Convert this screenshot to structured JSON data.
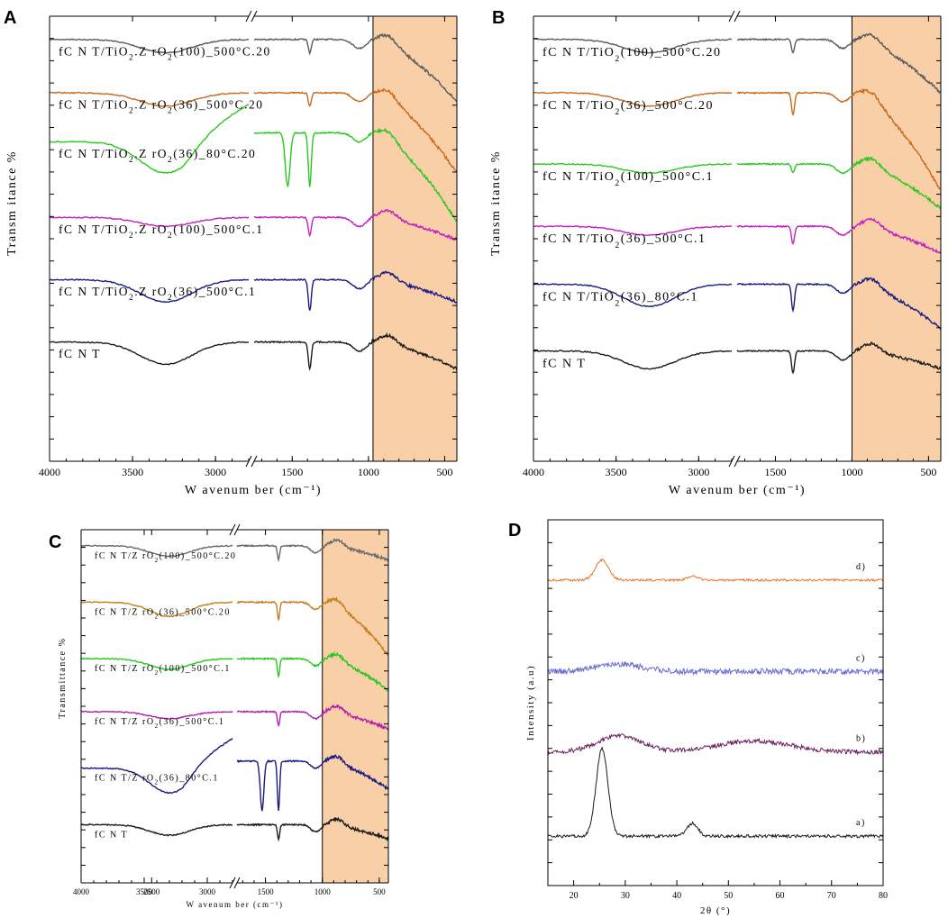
{
  "figure": {
    "description_note": "",
    "chart_data": [
      {
        "panel": "A",
        "type": "line",
        "subtype": "FTIR stacked spectra (broken x axis)",
        "xlabel": "W avenum ber (cm⁻¹)",
        "ylabel": "Transm itance %",
        "x_segments": [
          [
            4000,
            2800
          ],
          [
            1750,
            420
          ]
        ],
        "x_ticks": [
          4000,
          3500,
          3000,
          1500,
          1000,
          500
        ],
        "highlight_x": [
          970,
          420
        ],
        "highlight_color": "#f9cfa8",
        "series": [
          {
            "name": "fC N T/TiO₂.Z rO₂(100)_500°C.20",
            "color": "#5a5a5a",
            "offset": 0.04,
            "kind": "smooth",
            "dip": 0.03,
            "peak1380": 0.03,
            "tail": 0.14
          },
          {
            "name": "fC N T/TiO₂.Z rO₂(36)_500°C.20",
            "color": "#c8691c",
            "offset": 0.16,
            "kind": "smooth",
            "dip": 0.03,
            "peak1380": 0.03,
            "tail": 0.18
          },
          {
            "name": "fC N T/TiO₂.Z rO₂(36)_80°C.20",
            "color": "#28c81e",
            "offset": 0.27,
            "kind": "bend",
            "dip": 0.07,
            "peak1380": 0.12,
            "tail": 0.2
          },
          {
            "name": "fC N T/TiO₂.Z rO₂(100)_500°C.1",
            "color": "#c020c0",
            "offset": 0.44,
            "kind": "smooth",
            "dip": 0.02,
            "peak1380": 0.04,
            "tail": 0.05
          },
          {
            "name": "fC N T/TiO₂.Z rO₂(36)_500°C.1",
            "color": "#1a1a80",
            "offset": 0.58,
            "kind": "smooth",
            "dip": 0.05,
            "peak1380": 0.07,
            "tail": 0.05
          },
          {
            "name": "fC N T",
            "color": "#1a1a1a",
            "offset": 0.72,
            "kind": "smooth",
            "dip": 0.05,
            "peak1380": 0.06,
            "tail": 0.06
          }
        ]
      },
      {
        "panel": "B",
        "type": "line",
        "subtype": "FTIR stacked spectra (broken x axis)",
        "xlabel": "W avenum ber (cm⁻¹)",
        "ylabel": "Transm itance %",
        "x_segments": [
          [
            4000,
            2800
          ],
          [
            1750,
            420
          ]
        ],
        "x_ticks": [
          4000,
          3500,
          3000,
          1500,
          1000,
          500
        ],
        "highlight_x": [
          1000,
          420
        ],
        "highlight_color": "#f9cfa8",
        "series": [
          {
            "name": "fC N T/TiO₂(100)_500°C.20",
            "color": "#5a5a5a",
            "offset": 0.04,
            "kind": "smooth",
            "dip": 0.03,
            "peak1380": 0.03,
            "tail": 0.12
          },
          {
            "name": "fC N T/TiO₂(36)_500°C.20",
            "color": "#c8691c",
            "offset": 0.16,
            "kind": "smooth",
            "dip": 0.03,
            "peak1380": 0.05,
            "tail": 0.22
          },
          {
            "name": "fC N T/TiO₂(100)_500°C.1",
            "color": "#28c81e",
            "offset": 0.32,
            "kind": "smooth",
            "dip": 0.02,
            "peak1380": 0.02,
            "tail": 0.1
          },
          {
            "name": "fC N T/TiO₂(36)_500°C.1",
            "color": "#c020c0",
            "offset": 0.46,
            "kind": "smooth",
            "dip": 0.02,
            "peak1380": 0.04,
            "tail": 0.06
          },
          {
            "name": "fC N T/TiO₂(36)_80°C.1",
            "color": "#1a1a80",
            "offset": 0.59,
            "kind": "smooth",
            "dip": 0.05,
            "peak1380": 0.06,
            "tail": 0.1
          },
          {
            "name": "fC N T",
            "color": "#1a1a1a",
            "offset": 0.74,
            "kind": "smooth",
            "dip": 0.04,
            "peak1380": 0.05,
            "tail": 0.04
          }
        ]
      },
      {
        "panel": "C",
        "type": "line",
        "subtype": "FTIR stacked spectra (broken x axis)",
        "xlabel": "W avenum ber (cm⁻¹)",
        "ylabel": "Transmittance %",
        "x_segments": [
          [
            4000,
            2800
          ],
          [
            1750,
            420
          ]
        ],
        "x_ticks": [
          4000,
          3500,
          3000,
          2500,
          1500,
          1000,
          500
        ],
        "highlight_x": [
          1000,
          420
        ],
        "highlight_color": "#f9cfa8",
        "series": [
          {
            "name": "fC N T/Z rO₂(100)_500°C.20",
            "color": "#6a6a6a",
            "offset": 0.03,
            "kind": "smooth",
            "dip": 0.03,
            "peak1380": 0.04,
            "tail": 0.04
          },
          {
            "name": "fC N T/Z rO₂(36)_500°C.20",
            "color": "#c08020",
            "offset": 0.19,
            "kind": "smooth",
            "dip": 0.04,
            "peak1380": 0.05,
            "tail": 0.15
          },
          {
            "name": "fC N T/Z rO₂(100)_500°C.1",
            "color": "#28c81e",
            "offset": 0.35,
            "kind": "smooth",
            "dip": 0.03,
            "peak1380": 0.05,
            "tail": 0.09
          },
          {
            "name": "fC N T/Z rO₂(36)_500°C.1",
            "color": "#b020b0",
            "offset": 0.5,
            "kind": "smooth",
            "dip": 0.02,
            "peak1380": 0.04,
            "tail": 0.05
          },
          {
            "name": "fC N T/Z rO₂(36)_80°C.1",
            "color": "#1a1a80",
            "offset": 0.66,
            "kind": "bend",
            "dip": 0.07,
            "peak1380": 0.14,
            "tail": 0.08
          },
          {
            "name": "fC N T",
            "color": "#1a1a1a",
            "offset": 0.82,
            "kind": "smooth",
            "dip": 0.03,
            "peak1380": 0.04,
            "tail": 0.04
          }
        ]
      },
      {
        "panel": "D",
        "type": "line",
        "subtype": "XRD patterns (stacked)",
        "xlabel": "2θ (°)",
        "ylabel": "Intensity (a.u)",
        "xlim": [
          15,
          80
        ],
        "x_ticks": [
          20,
          30,
          40,
          50,
          60,
          70,
          80
        ],
        "series": [
          {
            "name": "d)",
            "color": "#e07830",
            "offset": 0.15,
            "peaks": [
              {
                "x": 25.5,
                "h": 0.055,
                "w": 1.8
              },
              {
                "x": 43,
                "h": 0.01,
                "w": 1.5
              }
            ],
            "noise": 0.003
          },
          {
            "name": "c)",
            "color": "#6a6ad0",
            "offset": 0.4,
            "peaks": [
              {
                "x": 29,
                "h": 0.02,
                "w": 6
              }
            ],
            "noise": 0.008
          },
          {
            "name": "b)",
            "color": "#6a2060",
            "offset": 0.62,
            "peaks": [
              {
                "x": 29,
                "h": 0.045,
                "w": 6
              },
              {
                "x": 55,
                "h": 0.03,
                "w": 10
              }
            ],
            "noise": 0.006
          },
          {
            "name": "a)",
            "color": "#1a1a1a",
            "offset": 0.85,
            "peaks": [
              {
                "x": 25.5,
                "h": 0.24,
                "w": 1.6
              },
              {
                "x": 43,
                "h": 0.035,
                "w": 1.5
              }
            ],
            "noise": 0.004
          }
        ]
      }
    ]
  }
}
